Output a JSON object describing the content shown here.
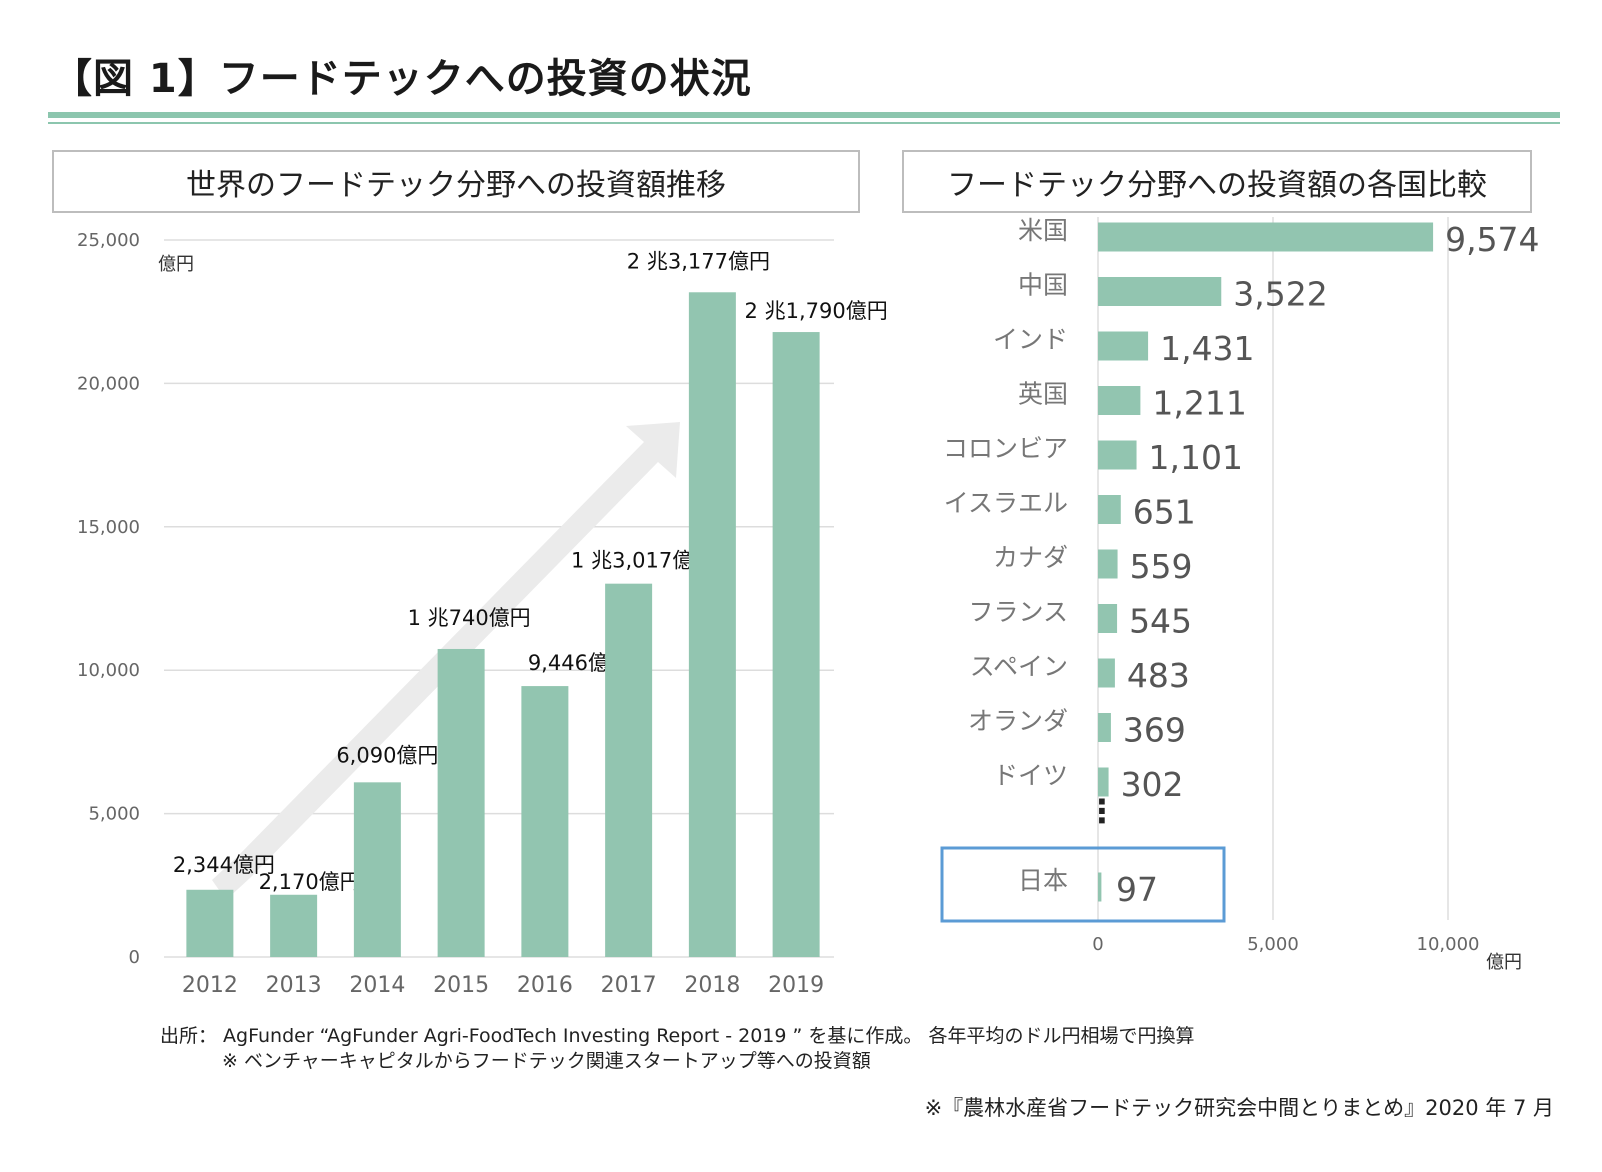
{
  "page": {
    "title": "【図 1】フードテックへの投資の状況",
    "source_line1": "出所： AgFunder “AgFunder Agri-FoodTech Investing Report - 2019 ” を基に作成。 各年平均のドル円相場で円換算",
    "source_line2": "※ ベンチャーキャピタルからフードテック関連スタートアップ等への投資額",
    "citation": "※『農林水産省フードテック研究会中間とりまとめ』2020 年 7 月",
    "colors": {
      "bar": "#92c5b0",
      "accent_rule": "#8cc6ae",
      "highlight_box": "#5b9bd5",
      "arrow": "#ebebeb",
      "grid": "#dddddd"
    }
  },
  "chart_data": [
    {
      "type": "bar",
      "title": "世界のフードテック分野への投資額推移",
      "unit_label": "億円",
      "categories": [
        "2012",
        "2013",
        "2014",
        "2015",
        "2016",
        "2017",
        "2018",
        "2019"
      ],
      "values": [
        2344,
        2170,
        6090,
        10740,
        9446,
        13017,
        23177,
        21790
      ],
      "data_labels": [
        "2,344億円",
        "2,170億円",
        "6,090億円",
        "1 兆740億円",
        "9,446億円",
        "1 兆3,017億円",
        "2 兆3,177億円",
        "2 兆1,790億円"
      ],
      "ylim": [
        0,
        25000
      ],
      "yticks": [
        0,
        5000,
        10000,
        15000,
        20000,
        25000
      ],
      "ytick_labels": [
        "0",
        "5,000",
        "10,000",
        "15,000",
        "20,000",
        "25,000"
      ],
      "grid": true,
      "trend_arrow": true
    },
    {
      "type": "bar",
      "orientation": "horizontal",
      "title": "フードテック分野への投資額の各国比較",
      "unit_label": "億円",
      "categories": [
        "米国",
        "中国",
        "インド",
        "英国",
        "コロンビア",
        "イスラエル",
        "カナダ",
        "フランス",
        "スペイン",
        "オランダ",
        "ドイツ"
      ],
      "values": [
        9574,
        3522,
        1431,
        1211,
        1101,
        651,
        559,
        545,
        483,
        369,
        302
      ],
      "data_labels": [
        "9,574",
        "3,522",
        "1,431",
        "1,211",
        "1,101",
        "651",
        "559",
        "545",
        "483",
        "369",
        "302"
      ],
      "ellipsis": "⋮",
      "highlight": {
        "category": "日本",
        "value": 97,
        "label": "97"
      },
      "xlim": [
        0,
        10000
      ],
      "xticks": [
        0,
        5000,
        10000
      ],
      "xtick_labels": [
        "0",
        "5,000",
        "10,000"
      ],
      "grid": true
    }
  ]
}
